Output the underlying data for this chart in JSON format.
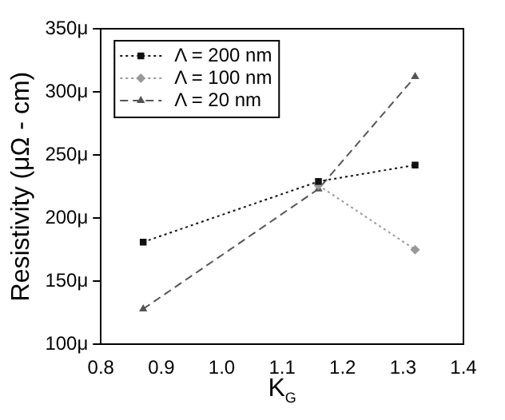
{
  "chart_data": {
    "type": "line",
    "xlabel": "K$_{G}$",
    "ylabel": "Resistivity (μΩ - cm)",
    "x": [
      0.87,
      1.16,
      1.32
    ],
    "series": [
      {
        "name": "Λ = 200 nm",
        "color": "#111111",
        "values": [
          181,
          229,
          242
        ],
        "marker": "square",
        "line_style": "dotted"
      },
      {
        "name": "Λ = 100 nm",
        "color": "#999999",
        "values": [
          null,
          226,
          175
        ],
        "marker": "diamond",
        "line_style": "dotted"
      },
      {
        "name": "Λ = 20 nm",
        "color": "#555555",
        "values": [
          128,
          223,
          312
        ],
        "marker": "triangle",
        "line_style": "dashed"
      }
    ],
    "xlim": [
      0.8,
      1.4
    ],
    "xticks": [
      0.8,
      0.9,
      {
        "value": 1,
        "label": "1.0"
      },
      1.1,
      1.2,
      1.3,
      1.4
    ],
    "ylim": [
      100,
      350
    ],
    "yticks": [
      {
        "value": 100,
        "label": "100μ"
      },
      {
        "value": 150,
        "label": "150μ"
      },
      {
        "value": 200,
        "label": "200μ"
      },
      {
        "value": 250,
        "label": "250μ"
      },
      {
        "value": 300,
        "label": "300μ"
      },
      {
        "value": 350,
        "label": "350μ"
      }
    ],
    "grid": false,
    "legend": "top left"
  }
}
